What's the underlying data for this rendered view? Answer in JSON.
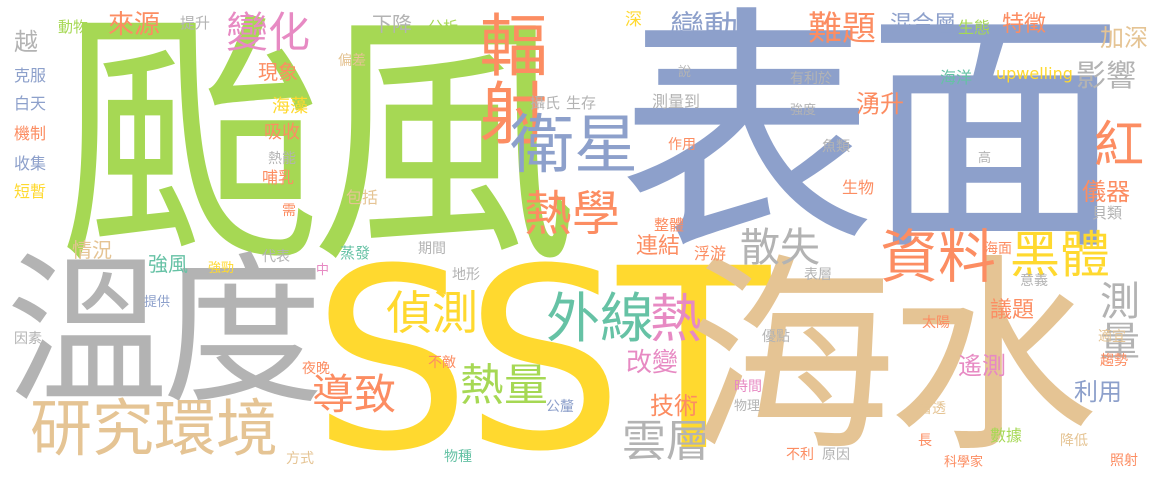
{
  "palette": {
    "green": "#a6d854",
    "blue": "#8da0cb",
    "yellow": "#ffd92f",
    "gray": "#b3b3b3",
    "orange": "#fc8d62",
    "teal": "#66c2a5",
    "pink": "#e78ac3",
    "tan": "#e5c494"
  },
  "words": {
    "typhoon": "颱風",
    "surface": "表面",
    "sst": "SST",
    "seawater": "海水",
    "temperature": "溫度",
    "radiation": "輻射",
    "satellite": "衛星",
    "data": "資料",
    "blackbody": "黑體",
    "thermodynamics": "熱學",
    "research_env": "研究環境",
    "infrared": "外線",
    "heat": "熱",
    "detect": "偵測",
    "heat_amount": "熱量",
    "lead_to": "導致",
    "change_hua": "變化",
    "change_dong": "變動",
    "difficulty": "難題",
    "mixed_layer": "混合層",
    "feature": "特徵",
    "ecology": "生態",
    "deepen": "加深",
    "influence": "影響",
    "red": "紅",
    "upwelling_zh": "湧升",
    "upwelling_en": "upwelling",
    "ocean": "海洋",
    "source": "來源",
    "phenomenon": "現象",
    "seaweed": "海藻",
    "absorb": "吸收",
    "thermal_energy": "熱能",
    "mammal": "哺乳",
    "animal": "動物",
    "improve": "提升",
    "bias": "偏差",
    "decline": "下降",
    "analysis": "分析",
    "deep": "深",
    "yue": "越",
    "overcome": "克服",
    "daytime": "白天",
    "mechanism": "機制",
    "collect": "收集",
    "short": "短暫",
    "need": "需",
    "include": "包括",
    "celsius": "攝氏",
    "survive": "生存",
    "measured": "測量到",
    "say": "說",
    "beneficial": "有利於",
    "intensity": "強度",
    "effect": "作用",
    "fish": "魚類",
    "high": "高",
    "organism": "生物",
    "instrument": "儀器",
    "shellfish": "貝類",
    "dissipate": "散失",
    "whole": "整體",
    "connect": "連結",
    "plankton": "浮游",
    "situation": "情況",
    "strong_wind": "強風",
    "intensify": "強勁",
    "represent": "代表",
    "evaporate": "蒸發",
    "period": "期間",
    "middle": "中",
    "terrain": "地形",
    "surface_layer": "表層",
    "sea_surface": "海面",
    "meaning": "意義",
    "measure": "測量",
    "provide": "提供",
    "factor": "因素",
    "sun": "太陽",
    "issue": "議題",
    "suitable": "適宜",
    "advantage": "優點",
    "trend": "趨勢",
    "night": "夜晚",
    "unmatched": "不敵",
    "alter": "改變",
    "remote_sensing": "遙測",
    "use": "利用",
    "technology": "技術",
    "kilometer": "公釐",
    "time": "時間",
    "physics": "物理",
    "cloud_layer": "雲層",
    "see_through": "看透",
    "figures": "數據",
    "reduce": "降低",
    "method": "方式",
    "species": "物種",
    "unfavorable": "不利",
    "reason": "原因",
    "long": "長",
    "scientist": "科學家",
    "illuminate": "照射"
  }
}
